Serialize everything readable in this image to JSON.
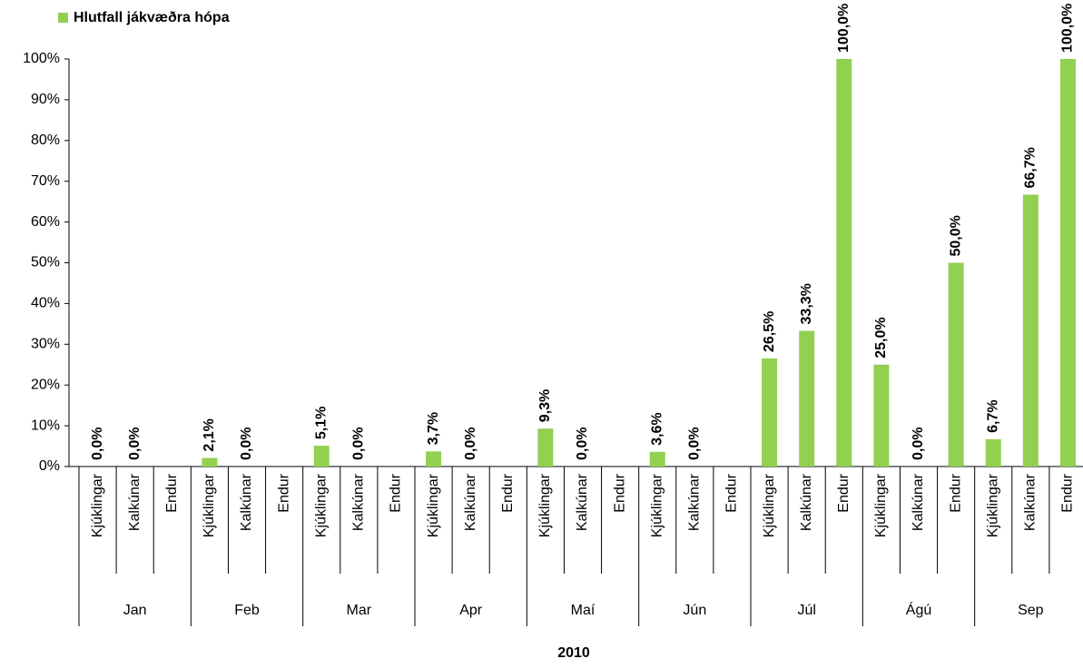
{
  "chart_data": {
    "type": "bar",
    "x_label": "2010",
    "groups": [
      "Jan",
      "Feb",
      "Mar",
      "Apr",
      "Maí",
      "Jún",
      "Júl",
      "Ágú",
      "Sep"
    ],
    "categories": [
      "Kjúklingar",
      "Kalkúnar",
      "Endur",
      "Kjúklingar",
      "Kalkúnar",
      "Endur",
      "Kjúklingar",
      "Kalkúnar",
      "Endur",
      "Kjúklingar",
      "Kalkúnar",
      "Endur",
      "Kjúklingar",
      "Kalkúnar",
      "Endur",
      "Kjúklingar",
      "Kalkúnar",
      "Endur",
      "Kjúklingar",
      "Kalkúnar",
      "Endur",
      "Kjúklingar",
      "Kalkúnar",
      "Endur",
      "Kjúklingar",
      "Kalkúnar",
      "Endur"
    ],
    "series": [
      {
        "name": "Hlutfall jákvæðra hópa",
        "color": "#92d050",
        "values": [
          0,
          0,
          null,
          2.1,
          0,
          null,
          5.1,
          0,
          null,
          3.7,
          0,
          null,
          9.3,
          0,
          null,
          3.6,
          0,
          null,
          26.5,
          33.3,
          100,
          25,
          0,
          50,
          6.7,
          66.7,
          100
        ],
        "value_labels": [
          "0,0%",
          "0,0%",
          null,
          "2,1%",
          "0,0%",
          null,
          "5,1%",
          "0,0%",
          null,
          "3,7%",
          "0,0%",
          null,
          "9,3%",
          "0,0%",
          null,
          "3,6%",
          "0,0%",
          null,
          "26,5%",
          "33,3%",
          "100,0%",
          "25,0%",
          "0,0%",
          "50,0%",
          "6,7%",
          "66,7%",
          "100,0%"
        ]
      }
    ],
    "ylim": [
      0,
      100
    ],
    "yticks": [
      {
        "value": 0,
        "label": "0%"
      },
      {
        "value": 10,
        "label": "10%"
      },
      {
        "value": 20,
        "label": "20%"
      },
      {
        "value": 30,
        "label": "30%"
      },
      {
        "value": 40,
        "label": "40%"
      },
      {
        "value": 50,
        "label": "50%"
      },
      {
        "value": 60,
        "label": "60%"
      },
      {
        "value": 70,
        "label": "70%"
      },
      {
        "value": 80,
        "label": "80%"
      },
      {
        "value": 90,
        "label": "90%"
      },
      {
        "value": 100,
        "label": "100%"
      }
    ],
    "grid": false,
    "legend": "top-left"
  }
}
